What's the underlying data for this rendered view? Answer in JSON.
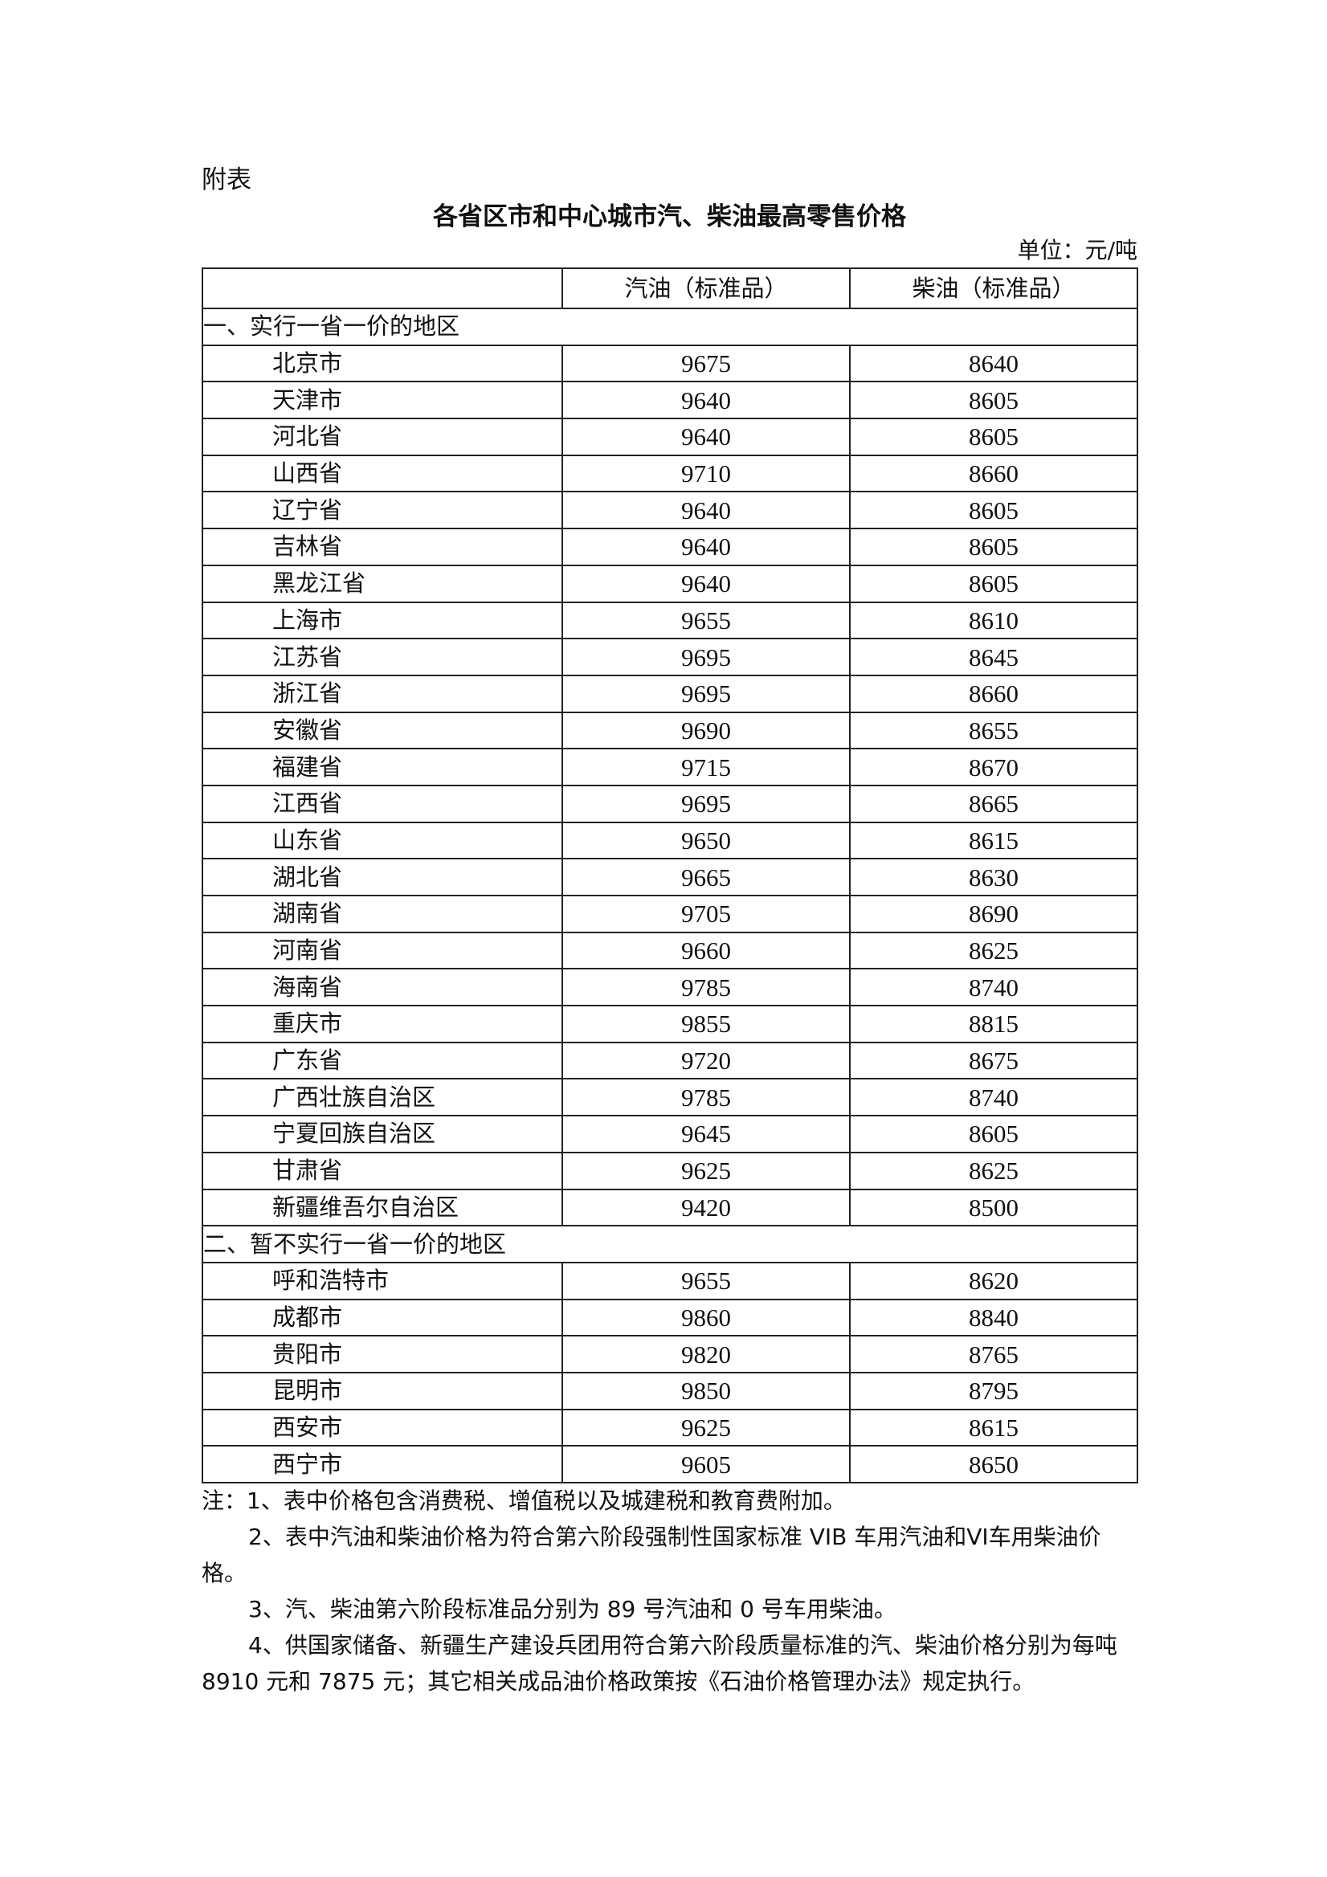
{
  "appendix_label": "附表",
  "title": "各省区市和中心城市汽、柴油最高零售价格",
  "unit": "单位：元/吨",
  "columns": [
    "",
    "汽油（标准品）",
    "柴油（标准品）"
  ],
  "sections": [
    {
      "label": "一、实行一省一价的地区",
      "rows": [
        [
          "北京市",
          "9675",
          "8640"
        ],
        [
          "天津市",
          "9640",
          "8605"
        ],
        [
          "河北省",
          "9640",
          "8605"
        ],
        [
          "山西省",
          "9710",
          "8660"
        ],
        [
          "辽宁省",
          "9640",
          "8605"
        ],
        [
          "吉林省",
          "9640",
          "8605"
        ],
        [
          "黑龙江省",
          "9640",
          "8605"
        ],
        [
          "上海市",
          "9655",
          "8610"
        ],
        [
          "江苏省",
          "9695",
          "8645"
        ],
        [
          "浙江省",
          "9695",
          "8660"
        ],
        [
          "安徽省",
          "9690",
          "8655"
        ],
        [
          "福建省",
          "9715",
          "8670"
        ],
        [
          "江西省",
          "9695",
          "8665"
        ],
        [
          "山东省",
          "9650",
          "8615"
        ],
        [
          "湖北省",
          "9665",
          "8630"
        ],
        [
          "湖南省",
          "9705",
          "8690"
        ],
        [
          "河南省",
          "9660",
          "8625"
        ],
        [
          "海南省",
          "9785",
          "8740"
        ],
        [
          "重庆市",
          "9855",
          "8815"
        ],
        [
          "广东省",
          "9720",
          "8675"
        ],
        [
          "广西壮族自治区",
          "9785",
          "8740"
        ],
        [
          "宁夏回族自治区",
          "9645",
          "8605"
        ],
        [
          "甘肃省",
          "9625",
          "8625"
        ],
        [
          "新疆维吾尔自治区",
          "9420",
          "8500"
        ]
      ]
    },
    {
      "label": "二、暂不实行一省一价的地区",
      "rows": [
        [
          "呼和浩特市",
          "9655",
          "8620"
        ],
        [
          "成都市",
          "9860",
          "8840"
        ],
        [
          "贵阳市",
          "9820",
          "8765"
        ],
        [
          "昆明市",
          "9850",
          "8795"
        ],
        [
          "西安市",
          "9625",
          "8615"
        ],
        [
          "西宁市",
          "9605",
          "8650"
        ]
      ]
    }
  ],
  "notes": [
    "注：1、表中价格包含消费税、增值税以及城建税和教育费附加。",
    "2、表中汽油和柴油价格为符合第六阶段强制性国家标准 VIB 车用汽油和VI车用柴油价格。",
    "3、汽、柴油第六阶段标准品分别为 89 号汽油和 0 号车用柴油。",
    "4、供国家储备、新疆生产建设兵团用符合第六阶段质量标准的汽、柴油价格分别为每吨 8910 元和 7875 元；其它相关成品油价格政策按《石油价格管理办法》规定执行。"
  ]
}
